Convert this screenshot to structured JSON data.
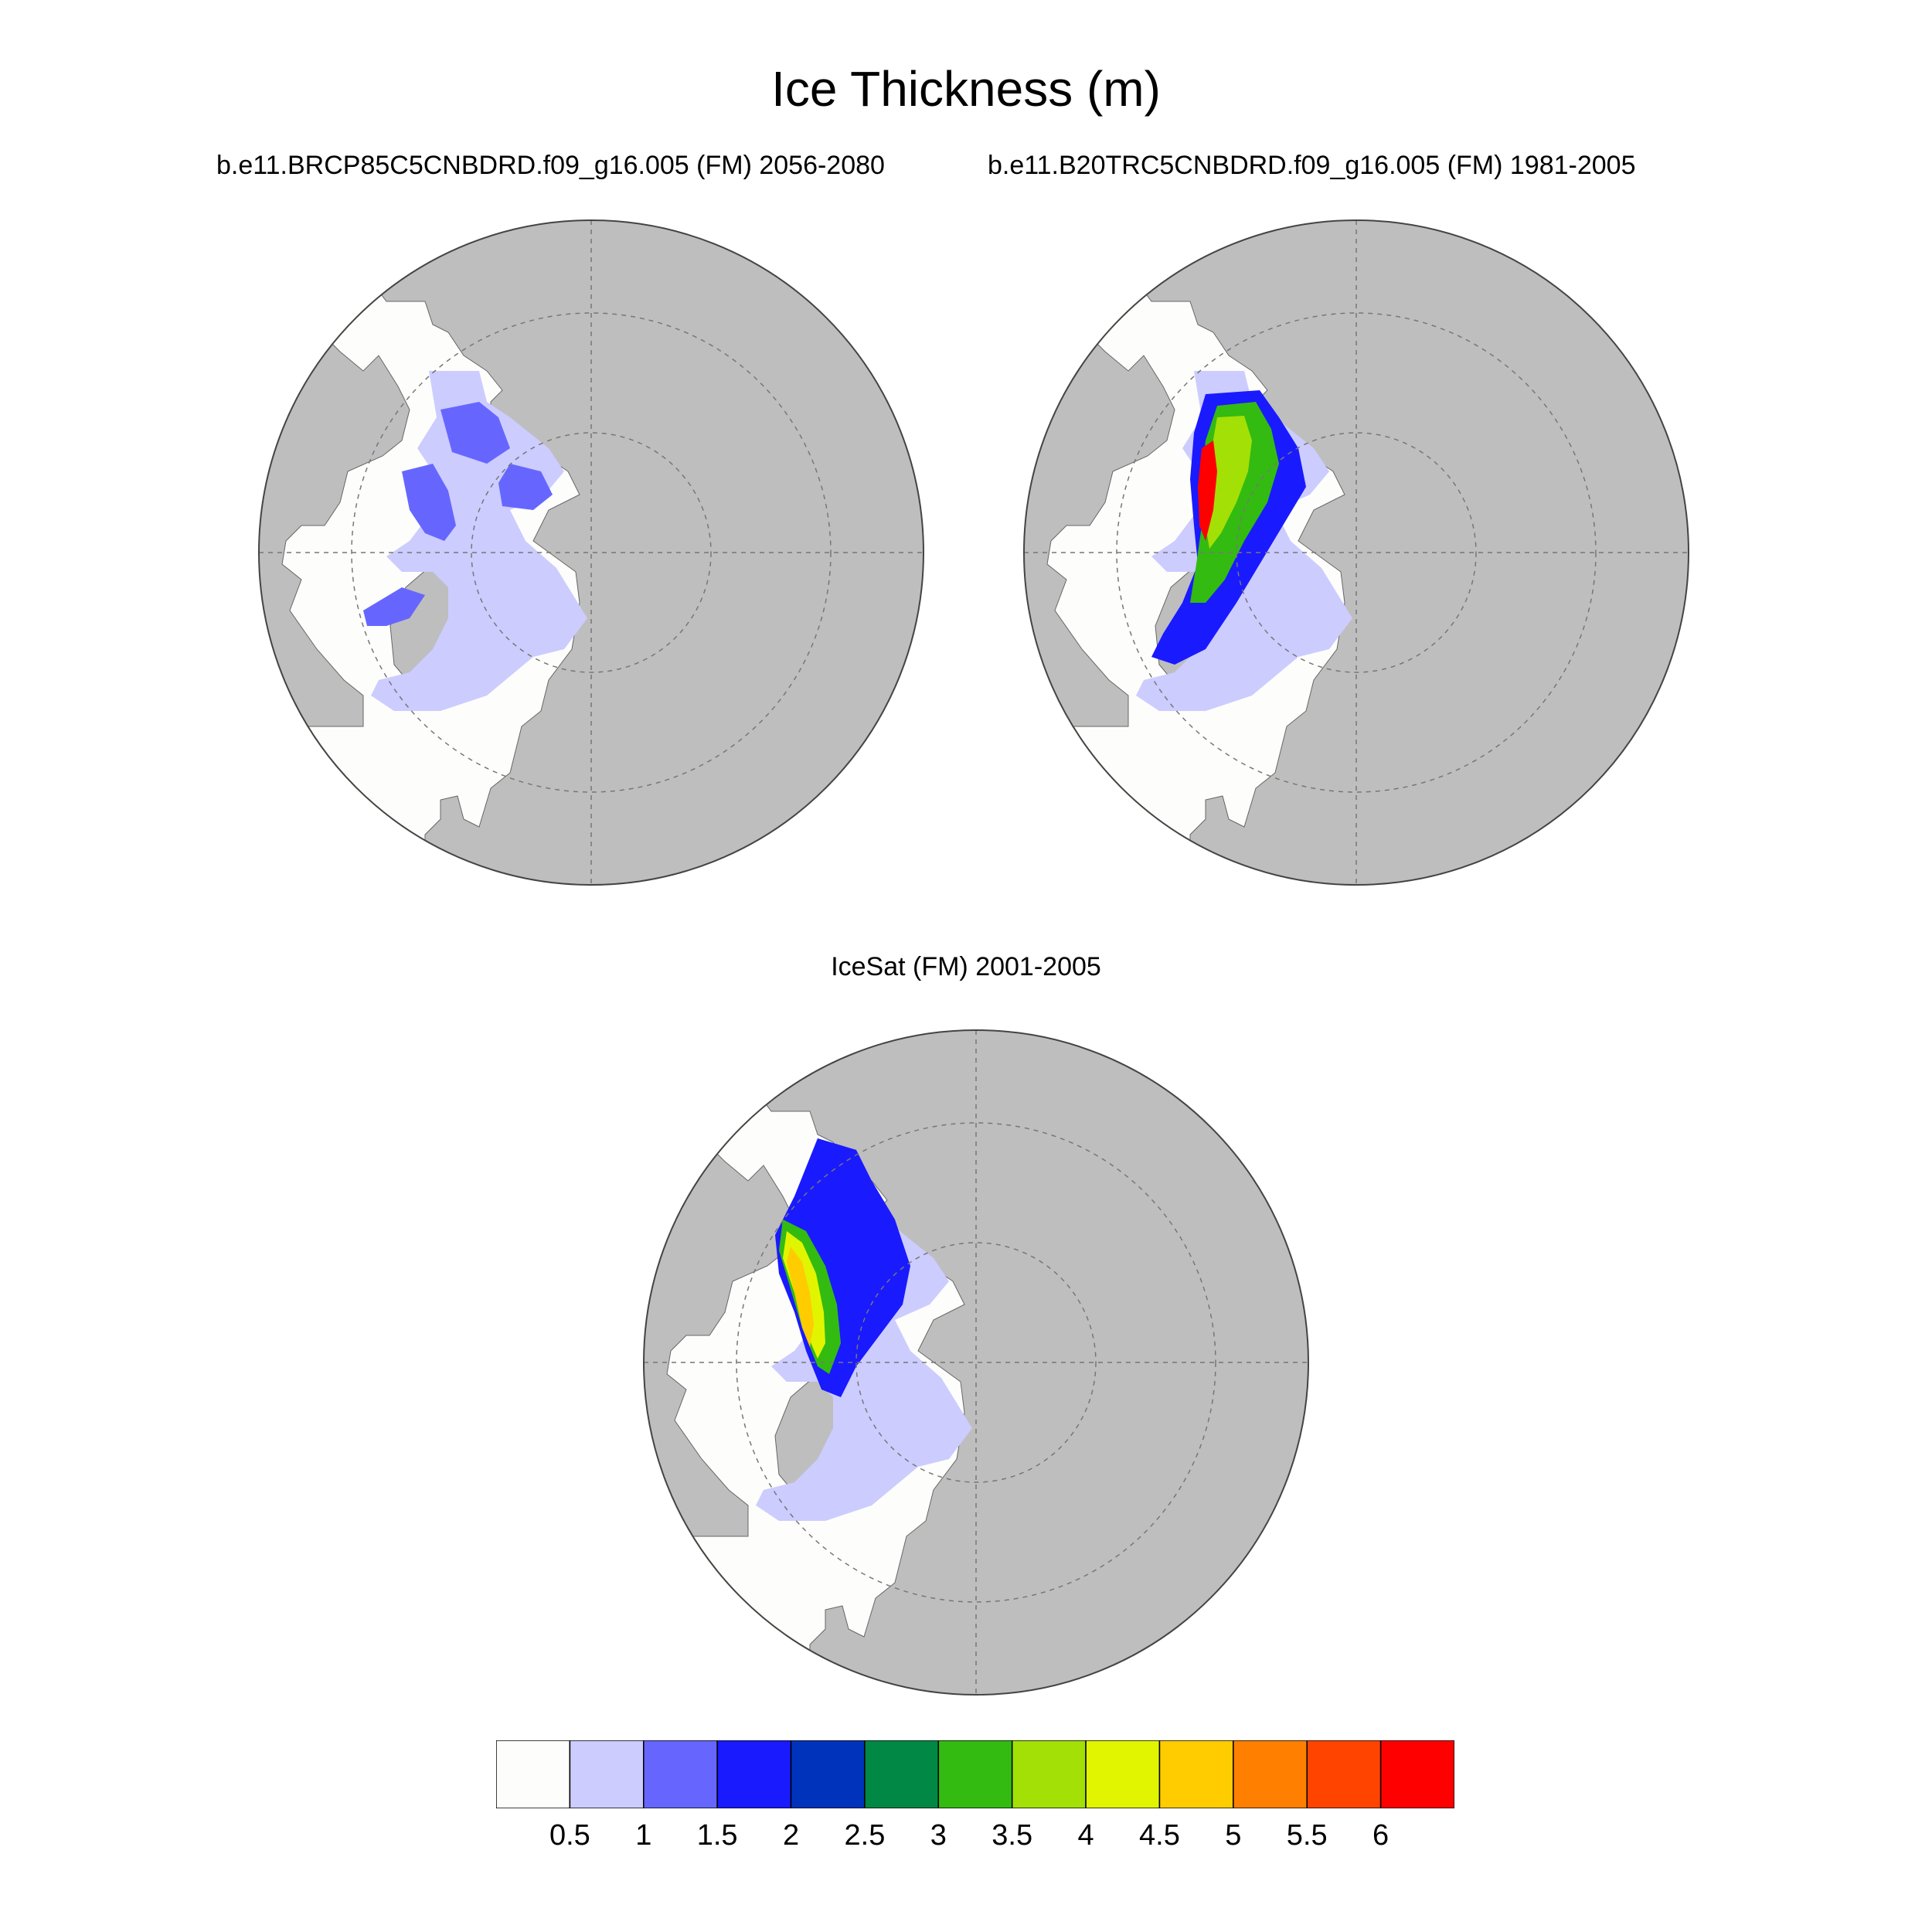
{
  "title": "Ice Thickness (m)",
  "panels": [
    {
      "id": "rcp85",
      "title": "b.e11.BRCP85C5CNBDRD.f09_g16.005 (FM) 2056-2080"
    },
    {
      "id": "b20tr",
      "title": "b.e11.B20TRC5CNBDRD.f09_g16.005 (FM) 1981-2005"
    },
    {
      "id": "icesat",
      "title": "IceSat (FM) 2001-2005"
    }
  ],
  "colorbar": {
    "labels": [
      "0.5",
      "1",
      "1.5",
      "2",
      "2.5",
      "3",
      "3.5",
      "4",
      "4.5",
      "5",
      "5.5",
      "6"
    ],
    "colors": [
      "#fdfdfb",
      "#ccccff",
      "#6666ff",
      "#1a1aff",
      "#0033bb",
      "#008844",
      "#33bb11",
      "#a3e005",
      "#e1f501",
      "#ffcc00",
      "#ff7f00",
      "#ff4400",
      "#ff0000"
    ]
  },
  "map_colors": {
    "land": "#bebebe",
    "ocean": "#fdfdfb"
  }
}
